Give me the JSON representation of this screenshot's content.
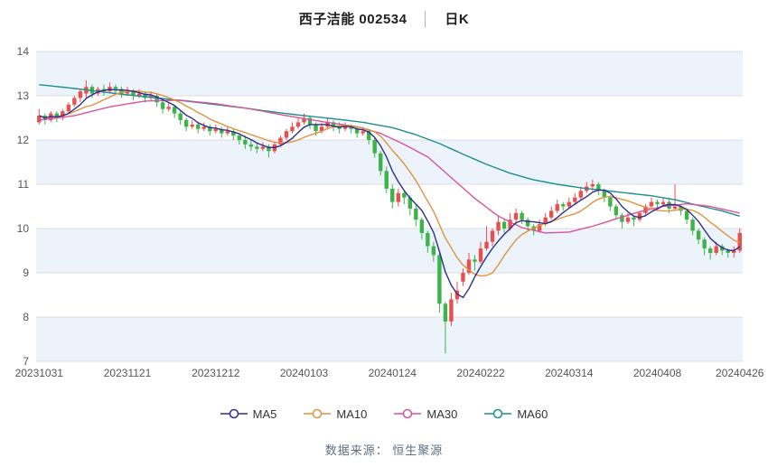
{
  "title": {
    "stock": "西子洁能 002534",
    "separator": "│",
    "period": "日K"
  },
  "footer": {
    "source_text": "数据来源：  恒生聚源"
  },
  "chart_data": {
    "type": "candlestick",
    "title": "西子洁能 002534 日K",
    "xlabel": "",
    "ylabel": "",
    "ylim": [
      7,
      14
    ],
    "y_ticks": [
      7,
      8,
      9,
      10,
      11,
      12,
      13,
      14
    ],
    "grid": true,
    "legend_position": "bottom",
    "x_ticks": [
      {
        "i": 0,
        "label": "20231031"
      },
      {
        "i": 15,
        "label": "20231121"
      },
      {
        "i": 30,
        "label": "20231212"
      },
      {
        "i": 45,
        "label": "20240103"
      },
      {
        "i": 60,
        "label": "20240124"
      },
      {
        "i": 75,
        "label": "20240222"
      },
      {
        "i": 90,
        "label": "20240314"
      },
      {
        "i": 105,
        "label": "20240408"
      },
      {
        "i": 119,
        "label": "20240426"
      }
    ],
    "legend": [
      {
        "name": "MA5",
        "color": "#2e2e8f"
      },
      {
        "name": "MA10",
        "color": "#e0923e"
      },
      {
        "name": "MA30",
        "color": "#d5549c"
      },
      {
        "name": "MA60",
        "color": "#1e8e8e"
      }
    ],
    "colors": {
      "up": "#e85050",
      "down": "#3cb44a",
      "band": "#edf3fa",
      "grid": "#d9dee4",
      "axis_text": "#555555"
    },
    "candles": [
      [
        12.4,
        12.7,
        12.35,
        12.55
      ],
      [
        12.55,
        12.6,
        12.35,
        12.45
      ],
      [
        12.45,
        12.65,
        12.4,
        12.6
      ],
      [
        12.6,
        12.65,
        12.4,
        12.5
      ],
      [
        12.5,
        12.7,
        12.45,
        12.65
      ],
      [
        12.65,
        12.85,
        12.6,
        12.8
      ],
      [
        12.8,
        13.0,
        12.75,
        12.95
      ],
      [
        12.95,
        13.15,
        12.85,
        13.1
      ],
      [
        13.05,
        13.35,
        12.95,
        13.2
      ],
      [
        13.2,
        13.25,
        12.95,
        13.05
      ],
      [
        13.05,
        13.2,
        13.0,
        13.15
      ],
      [
        13.15,
        13.25,
        13.0,
        13.1
      ],
      [
        13.1,
        13.3,
        13.05,
        13.2
      ],
      [
        13.2,
        13.25,
        13.05,
        13.15
      ],
      [
        13.15,
        13.2,
        12.95,
        13.05
      ],
      [
        13.05,
        13.2,
        13.0,
        13.1
      ],
      [
        13.1,
        13.15,
        12.9,
        13.0
      ],
      [
        13.0,
        13.15,
        12.95,
        13.05
      ],
      [
        13.05,
        13.1,
        12.85,
        12.95
      ],
      [
        12.95,
        13.1,
        12.9,
        13.0
      ],
      [
        13.0,
        13.05,
        12.75,
        12.85
      ],
      [
        12.85,
        12.9,
        12.6,
        12.7
      ],
      [
        12.7,
        12.85,
        12.65,
        12.75
      ],
      [
        12.75,
        12.8,
        12.5,
        12.6
      ],
      [
        12.6,
        12.65,
        12.35,
        12.45
      ],
      [
        12.45,
        12.5,
        12.2,
        12.3
      ],
      [
        12.3,
        12.45,
        12.25,
        12.35
      ],
      [
        12.35,
        12.4,
        12.15,
        12.25
      ],
      [
        12.25,
        12.4,
        12.2,
        12.3
      ],
      [
        12.3,
        12.35,
        12.1,
        12.2
      ],
      [
        12.2,
        12.35,
        12.15,
        12.25
      ],
      [
        12.25,
        12.3,
        12.05,
        12.15
      ],
      [
        12.15,
        12.3,
        12.1,
        12.2
      ],
      [
        12.2,
        12.25,
        12.0,
        12.1
      ],
      [
        12.1,
        12.15,
        11.9,
        12.0
      ],
      [
        12.0,
        12.1,
        11.8,
        11.9
      ],
      [
        11.9,
        12.0,
        11.75,
        11.85
      ],
      [
        11.85,
        11.95,
        11.7,
        11.8
      ],
      [
        11.8,
        11.95,
        11.75,
        11.85
      ],
      [
        11.85,
        11.9,
        11.6,
        11.75
      ],
      [
        11.75,
        11.95,
        11.7,
        11.9
      ],
      [
        11.9,
        12.1,
        11.85,
        12.05
      ],
      [
        12.05,
        12.25,
        12.0,
        12.2
      ],
      [
        12.2,
        12.4,
        12.15,
        12.3
      ],
      [
        12.3,
        12.5,
        12.25,
        12.4
      ],
      [
        12.4,
        12.6,
        12.35,
        12.5
      ],
      [
        12.5,
        12.55,
        12.25,
        12.35
      ],
      [
        12.35,
        12.4,
        12.1,
        12.2
      ],
      [
        12.2,
        12.4,
        12.15,
        12.3
      ],
      [
        12.3,
        12.5,
        12.25,
        12.4
      ],
      [
        12.4,
        12.45,
        12.2,
        12.3
      ],
      [
        12.3,
        12.4,
        12.15,
        12.25
      ],
      [
        12.25,
        12.4,
        12.2,
        12.3
      ],
      [
        12.3,
        12.35,
        12.15,
        12.25
      ],
      [
        12.25,
        12.3,
        12.05,
        12.15
      ],
      [
        12.15,
        12.3,
        12.1,
        12.2
      ],
      [
        12.2,
        12.25,
        11.9,
        12.0
      ],
      [
        12.0,
        12.05,
        11.6,
        11.7
      ],
      [
        11.7,
        11.75,
        11.2,
        11.3
      ],
      [
        11.3,
        11.4,
        10.8,
        10.9
      ],
      [
        10.9,
        11.0,
        10.45,
        10.6
      ],
      [
        10.6,
        10.9,
        10.5,
        10.8
      ],
      [
        10.8,
        10.85,
        10.55,
        10.7
      ],
      [
        10.7,
        10.75,
        10.3,
        10.45
      ],
      [
        10.45,
        10.55,
        10.05,
        10.2
      ],
      [
        10.2,
        10.25,
        9.75,
        9.9
      ],
      [
        9.9,
        9.95,
        9.45,
        9.6
      ],
      [
        9.6,
        9.7,
        9.25,
        9.4
      ],
      [
        9.4,
        9.45,
        8.1,
        8.3
      ],
      [
        8.3,
        8.35,
        7.18,
        7.9
      ],
      [
        7.9,
        8.55,
        7.8,
        8.4
      ],
      [
        8.4,
        8.8,
        8.3,
        8.6
      ],
      [
        8.8,
        9.1,
        8.7,
        9.0
      ],
      [
        9.0,
        9.45,
        8.95,
        9.3
      ],
      [
        9.3,
        9.4,
        9.05,
        9.25
      ],
      [
        9.25,
        9.7,
        9.2,
        9.55
      ],
      [
        9.55,
        10.05,
        9.5,
        9.7
      ],
      [
        9.7,
        10.0,
        9.6,
        9.95
      ],
      [
        9.95,
        10.3,
        9.85,
        10.15
      ],
      [
        10.15,
        10.2,
        9.9,
        10.0
      ],
      [
        10.0,
        10.35,
        9.95,
        10.2
      ],
      [
        10.2,
        10.45,
        10.1,
        10.35
      ],
      [
        10.35,
        10.4,
        10.1,
        10.2
      ],
      [
        10.2,
        10.25,
        9.95,
        10.05
      ],
      [
        10.05,
        10.1,
        9.85,
        9.95
      ],
      [
        9.95,
        10.2,
        9.9,
        10.1
      ],
      [
        10.1,
        10.35,
        10.05,
        10.25
      ],
      [
        10.25,
        10.5,
        10.2,
        10.4
      ],
      [
        10.4,
        10.65,
        10.35,
        10.55
      ],
      [
        10.55,
        10.6,
        10.4,
        10.5
      ],
      [
        10.5,
        10.7,
        10.45,
        10.6
      ],
      [
        10.6,
        10.8,
        10.55,
        10.7
      ],
      [
        10.7,
        10.95,
        10.65,
        10.85
      ],
      [
        10.85,
        11.05,
        10.8,
        10.95
      ],
      [
        10.95,
        11.1,
        10.85,
        11.0
      ],
      [
        11.0,
        11.05,
        10.75,
        10.85
      ],
      [
        10.85,
        10.9,
        10.6,
        10.7
      ],
      [
        10.7,
        10.75,
        10.4,
        10.5
      ],
      [
        10.5,
        10.55,
        10.2,
        10.3
      ],
      [
        10.3,
        10.35,
        10.0,
        10.15
      ],
      [
        10.15,
        10.35,
        10.1,
        10.25
      ],
      [
        10.25,
        10.3,
        10.05,
        10.2
      ],
      [
        10.2,
        10.4,
        10.15,
        10.35
      ],
      [
        10.35,
        10.55,
        10.3,
        10.5
      ],
      [
        10.5,
        10.7,
        10.45,
        10.6
      ],
      [
        10.6,
        10.65,
        10.45,
        10.55
      ],
      [
        10.55,
        10.7,
        10.5,
        10.6
      ],
      [
        10.6,
        10.65,
        10.35,
        10.45
      ],
      [
        10.45,
        11.0,
        10.4,
        10.5
      ],
      [
        10.5,
        10.55,
        10.3,
        10.4
      ],
      [
        10.4,
        10.45,
        10.1,
        10.2
      ],
      [
        10.2,
        10.25,
        9.85,
        9.95
      ],
      [
        9.95,
        10.0,
        9.65,
        9.75
      ],
      [
        9.75,
        9.8,
        9.4,
        9.55
      ],
      [
        9.55,
        9.6,
        9.3,
        9.45
      ],
      [
        9.45,
        9.7,
        9.4,
        9.6
      ],
      [
        9.6,
        9.65,
        9.4,
        9.5
      ],
      [
        9.5,
        9.55,
        9.35,
        9.45
      ],
      [
        9.45,
        9.6,
        9.35,
        9.5
      ],
      [
        9.5,
        10.0,
        9.45,
        9.9
      ]
    ],
    "ma30_points": [
      [
        0,
        12.45
      ],
      [
        6,
        12.55
      ],
      [
        12,
        12.75
      ],
      [
        18,
        12.88
      ],
      [
        24,
        12.9
      ],
      [
        30,
        12.82
      ],
      [
        36,
        12.7
      ],
      [
        42,
        12.55
      ],
      [
        48,
        12.42
      ],
      [
        54,
        12.3
      ],
      [
        58,
        12.15
      ],
      [
        62,
        11.9
      ],
      [
        66,
        11.62
      ],
      [
        70,
        11.15
      ],
      [
        74,
        10.68
      ],
      [
        78,
        10.28
      ],
      [
        82,
        10.02
      ],
      [
        86,
        9.9
      ],
      [
        90,
        9.92
      ],
      [
        94,
        10.05
      ],
      [
        98,
        10.22
      ],
      [
        102,
        10.38
      ],
      [
        106,
        10.5
      ],
      [
        110,
        10.56
      ],
      [
        114,
        10.5
      ],
      [
        119,
        10.35
      ]
    ],
    "ma60_points": [
      [
        0,
        13.25
      ],
      [
        5,
        13.18
      ],
      [
        10,
        13.1
      ],
      [
        15,
        13.02
      ],
      [
        20,
        12.95
      ],
      [
        25,
        12.88
      ],
      [
        30,
        12.8
      ],
      [
        35,
        12.72
      ],
      [
        40,
        12.63
      ],
      [
        45,
        12.55
      ],
      [
        50,
        12.48
      ],
      [
        55,
        12.4
      ],
      [
        60,
        12.28
      ],
      [
        64,
        12.12
      ],
      [
        68,
        11.92
      ],
      [
        72,
        11.68
      ],
      [
        76,
        11.45
      ],
      [
        80,
        11.25
      ],
      [
        84,
        11.1
      ],
      [
        88,
        11.0
      ],
      [
        92,
        10.92
      ],
      [
        96,
        10.86
      ],
      [
        100,
        10.8
      ],
      [
        104,
        10.74
      ],
      [
        108,
        10.65
      ],
      [
        112,
        10.52
      ],
      [
        116,
        10.4
      ],
      [
        119,
        10.28
      ]
    ]
  }
}
